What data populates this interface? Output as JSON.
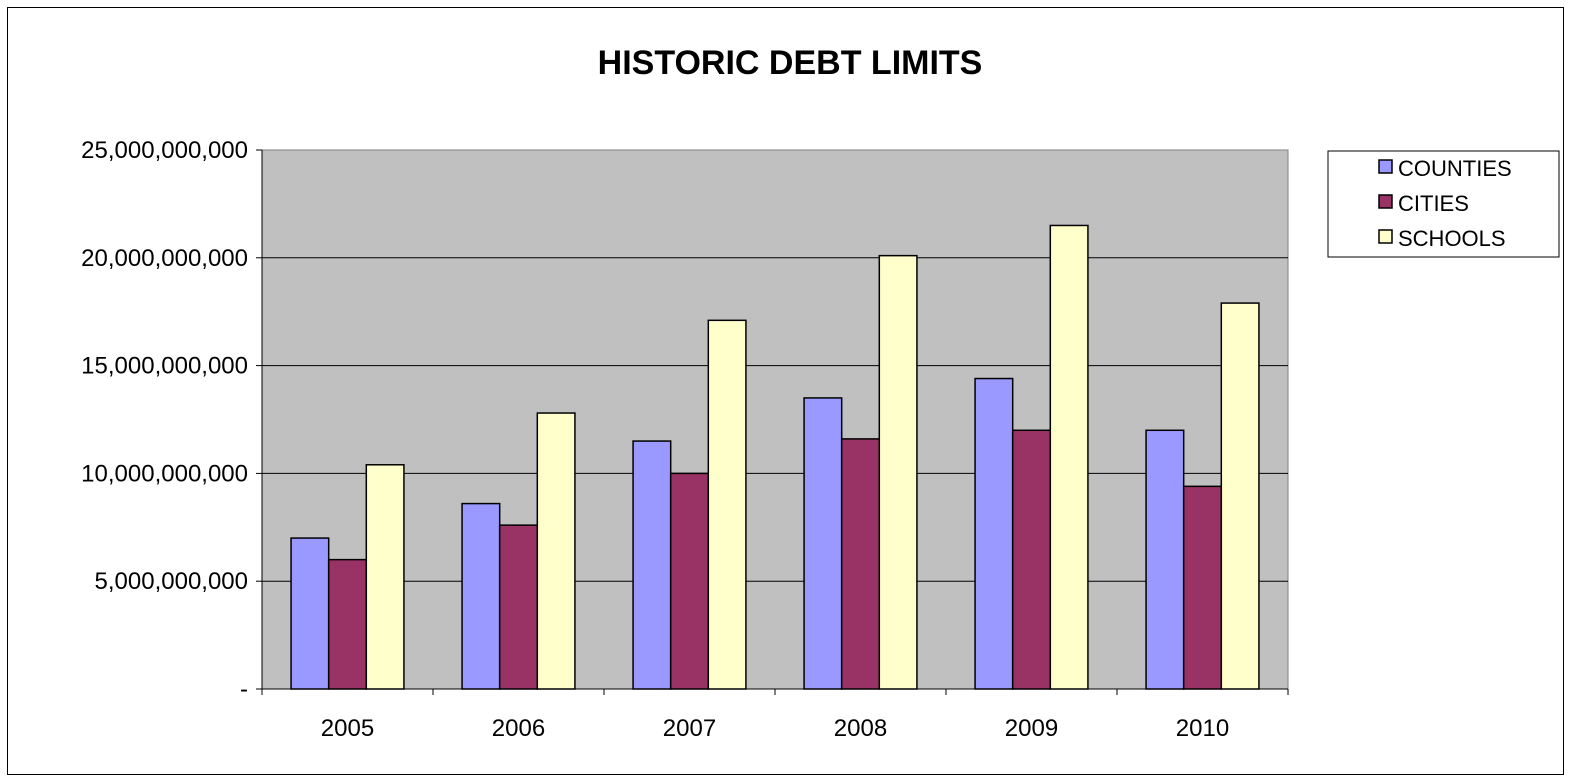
{
  "chart_data": {
    "type": "bar",
    "title": "HISTORIC DEBT LIMITS",
    "xlabel": "",
    "ylabel": "",
    "categories": [
      "2005",
      "2006",
      "2007",
      "2008",
      "2009",
      "2010"
    ],
    "series": [
      {
        "name": "COUNTIES",
        "color": "#9999FF",
        "values": [
          7000000000,
          8600000000,
          11500000000,
          13500000000,
          14400000000,
          12000000000
        ]
      },
      {
        "name": "CITIES",
        "color": "#993366",
        "values": [
          6000000000,
          7600000000,
          10000000000,
          11600000000,
          12000000000,
          9400000000
        ]
      },
      {
        "name": "SCHOOLS",
        "color": "#FFFFCC",
        "values": [
          10400000000,
          12800000000,
          17100000000,
          20100000000,
          21500000000,
          17900000000
        ]
      }
    ],
    "ylim": [
      0,
      25000000000
    ],
    "yticks": [
      {
        "value": 0,
        "label": "-"
      },
      {
        "value": 5000000000,
        "label": "5,000,000,000"
      },
      {
        "value": 10000000000,
        "label": "10,000,000,000"
      },
      {
        "value": 15000000000,
        "label": "15,000,000,000"
      },
      {
        "value": 20000000000,
        "label": "20,000,000,000"
      },
      {
        "value": 25000000000,
        "label": "25,000,000,000"
      }
    ],
    "grid": true,
    "plot_background": "#C0C0C0",
    "legend_position": "top-right"
  }
}
